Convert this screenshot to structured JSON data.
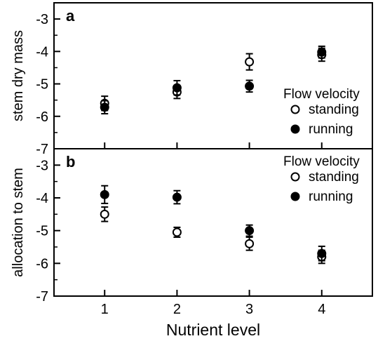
{
  "chart_data": [
    {
      "type": "scatter",
      "panel_label": "a",
      "ylabel": "stem dry mass",
      "xlabel": "",
      "x": [
        1,
        2,
        3,
        4
      ],
      "xlim": [
        0.3,
        4.7
      ],
      "ylim": [
        -7,
        -2.5
      ],
      "yticks": [
        -3,
        -4,
        -5,
        -6,
        -7
      ],
      "series": [
        {
          "name": "standing",
          "marker": "open-circle",
          "values": [
            -5.6,
            -5.25,
            -4.32,
            -4.1
          ],
          "error": [
            0.22,
            0.2,
            0.25,
            0.2
          ]
        },
        {
          "name": "running",
          "marker": "filled-circle",
          "values": [
            -5.72,
            -5.12,
            -5.07,
            -4.02
          ],
          "error": [
            0.2,
            0.22,
            0.18,
            0.18
          ]
        }
      ],
      "legend": {
        "title": "Flow velocity",
        "position": "right",
        "entries": [
          "standing",
          "running"
        ]
      }
    },
    {
      "type": "scatter",
      "panel_label": "b",
      "ylabel": "allocation to stem",
      "xlabel": "Nutrient level",
      "x": [
        1,
        2,
        3,
        4
      ],
      "xticklabels": [
        "1",
        "2",
        "3",
        "4"
      ],
      "xlim": [
        0.3,
        4.7
      ],
      "ylim": [
        -7,
        -2.5
      ],
      "yticks": [
        -3,
        -4,
        -5,
        -6,
        -7
      ],
      "series": [
        {
          "name": "standing",
          "marker": "open-circle",
          "values": [
            -4.5,
            -5.05,
            -5.4,
            -5.8
          ],
          "error": [
            0.22,
            0.15,
            0.2,
            0.2
          ]
        },
        {
          "name": "running",
          "marker": "filled-circle",
          "values": [
            -3.9,
            -3.98,
            -5.0,
            -5.7
          ],
          "error": [
            0.27,
            0.2,
            0.17,
            0.22
          ]
        }
      ],
      "legend": {
        "title": "Flow velocity",
        "position": "top-right",
        "entries": [
          "standing",
          "running"
        ]
      }
    }
  ]
}
